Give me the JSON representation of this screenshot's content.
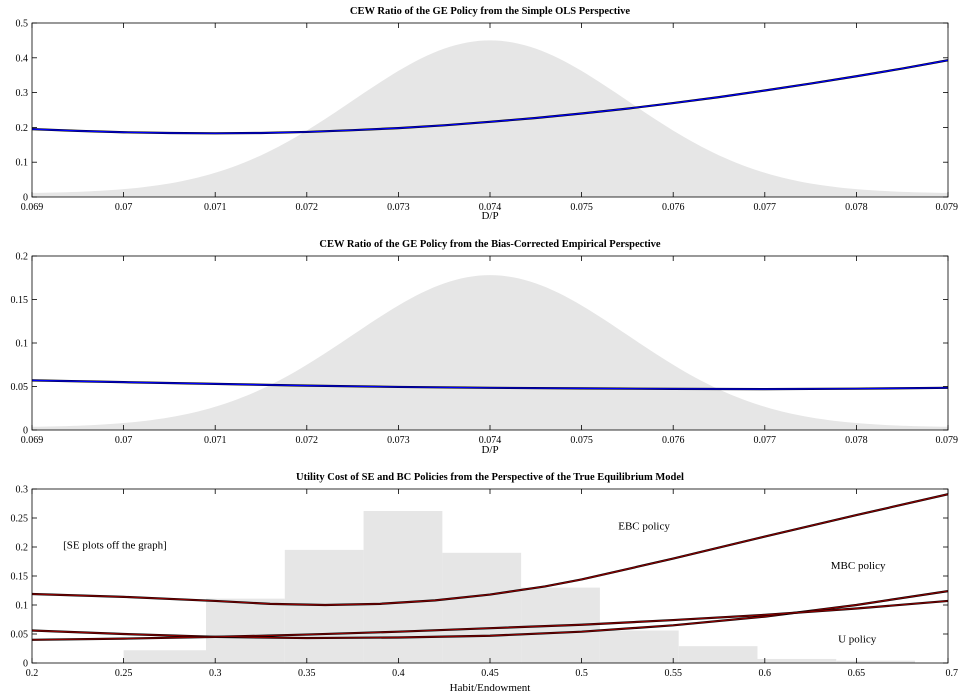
{
  "chart_data": [
    {
      "type": "line",
      "title": "CEW Ratio of the GE Policy from the Simple OLS Perspective",
      "xlabel": "D/P",
      "ylabel": "",
      "xlim": [
        0.069,
        0.079
      ],
      "ylim": [
        0,
        0.5
      ],
      "x_ticks": [
        "0.069",
        "0.07",
        "0.071",
        "0.072",
        "0.073",
        "0.074",
        "0.075",
        "0.076",
        "0.077",
        "0.078",
        "0.079"
      ],
      "y_ticks": [
        "0",
        "0.1",
        "0.2",
        "0.3",
        "0.4",
        "0.5"
      ],
      "background_density": {
        "type": "area",
        "color": "#e6e6e6",
        "mean": 0.074,
        "sd": 0.0015,
        "peak": 0.45,
        "tail": 0.01
      },
      "series": [
        {
          "color": "#0000ff",
          "x": [
            0.069,
            0.0695,
            0.07,
            0.0705,
            0.071,
            0.0715,
            0.072,
            0.0725,
            0.073,
            0.0735,
            0.074,
            0.0745,
            0.075,
            0.0755,
            0.076,
            0.0765,
            0.077,
            0.0775,
            0.078,
            0.0785,
            0.079
          ],
          "y": [
            0.195,
            0.19,
            0.186,
            0.184,
            0.183,
            0.184,
            0.187,
            0.192,
            0.198,
            0.206,
            0.216,
            0.227,
            0.24,
            0.254,
            0.27,
            0.287,
            0.306,
            0.326,
            0.347,
            0.369,
            0.393
          ]
        }
      ]
    },
    {
      "type": "line",
      "title": "CEW Ratio of the GE Policy from the Bias-Corrected Empirical Perspective",
      "xlabel": "D/P",
      "ylabel": "",
      "xlim": [
        0.069,
        0.079
      ],
      "ylim": [
        0,
        0.2
      ],
      "x_ticks": [
        "0.069",
        "0.07",
        "0.071",
        "0.072",
        "0.073",
        "0.074",
        "0.075",
        "0.076",
        "0.077",
        "0.078",
        "0.079"
      ],
      "y_ticks": [
        "0",
        "0.05",
        "0.1",
        "0.15",
        "0.2"
      ],
      "background_density": {
        "type": "area",
        "color": "#e6e6e6",
        "mean": 0.074,
        "sd": 0.0015,
        "peak": 0.178,
        "tail": 0.003
      },
      "series": [
        {
          "color": "#0000ff",
          "x": [
            0.069,
            0.07,
            0.071,
            0.072,
            0.073,
            0.074,
            0.075,
            0.076,
            0.077,
            0.078,
            0.079
          ],
          "y": [
            0.057,
            0.055,
            0.053,
            0.051,
            0.0495,
            0.0485,
            0.0478,
            0.0473,
            0.047,
            0.0475,
            0.0485
          ]
        }
      ]
    },
    {
      "type": "line",
      "title": "Utility Cost of SE and BC Policies from the Perspective of the True Equilibrium Model",
      "xlabel": "Habit/Endowment",
      "ylabel": "",
      "xlim": [
        0.2,
        0.7
      ],
      "ylim": [
        0,
        0.3
      ],
      "x_ticks": [
        "0.2",
        "0.25",
        "0.3",
        "0.35",
        "0.4",
        "0.45",
        "0.5",
        "0.55",
        "0.6",
        "0.65",
        "0.7"
      ],
      "y_ticks": [
        "0",
        "0.05",
        "0.1",
        "0.15",
        "0.2",
        "0.25",
        "0.3"
      ],
      "histogram": {
        "color": "#e6e6e6",
        "bins": [
          {
            "x0": 0.25,
            "x1": 0.295,
            "value": 0.022
          },
          {
            "x0": 0.295,
            "x1": 0.338,
            "value": 0.111
          },
          {
            "x0": 0.338,
            "x1": 0.381,
            "value": 0.195
          },
          {
            "x0": 0.381,
            "x1": 0.424,
            "value": 0.262
          },
          {
            "x0": 0.424,
            "x1": 0.467,
            "value": 0.19
          },
          {
            "x0": 0.467,
            "x1": 0.51,
            "value": 0.13
          },
          {
            "x0": 0.51,
            "x1": 0.553,
            "value": 0.056
          },
          {
            "x0": 0.553,
            "x1": 0.596,
            "value": 0.029
          },
          {
            "x0": 0.596,
            "x1": 0.639,
            "value": 0.007
          },
          {
            "x0": 0.639,
            "x1": 0.682,
            "value": 0.004
          }
        ]
      },
      "series": [
        {
          "color": "#8b0000",
          "label": "EBC policy",
          "x": [
            0.2,
            0.25,
            0.3,
            0.33,
            0.36,
            0.39,
            0.42,
            0.45,
            0.48,
            0.5,
            0.55,
            0.6,
            0.65,
            0.7
          ],
          "y": [
            0.119,
            0.114,
            0.107,
            0.102,
            0.1,
            0.102,
            0.108,
            0.118,
            0.132,
            0.144,
            0.18,
            0.218,
            0.255,
            0.291
          ]
        },
        {
          "color": "#8b0000",
          "label": "MBC policy",
          "x": [
            0.2,
            0.25,
            0.3,
            0.35,
            0.4,
            0.45,
            0.5,
            0.55,
            0.6,
            0.65,
            0.7
          ],
          "y": [
            0.056,
            0.05,
            0.045,
            0.043,
            0.044,
            0.047,
            0.054,
            0.065,
            0.08,
            0.1,
            0.124
          ]
        },
        {
          "color": "#8b0000",
          "label": "U policy",
          "x": [
            0.2,
            0.25,
            0.3,
            0.35,
            0.4,
            0.45,
            0.5,
            0.55,
            0.6,
            0.65,
            0.7
          ],
          "y": [
            0.04,
            0.042,
            0.045,
            0.049,
            0.054,
            0.06,
            0.066,
            0.074,
            0.083,
            0.094,
            0.107
          ]
        }
      ],
      "annotations": [
        {
          "text": "EBC policy",
          "x": 0.52,
          "y": 0.23
        },
        {
          "text": "MBC policy",
          "x": 0.636,
          "y": 0.162
        },
        {
          "text": "U policy",
          "x": 0.64,
          "y": 0.035
        },
        {
          "text": "[SE plots off the graph]",
          "x": 0.217,
          "y": 0.197
        }
      ]
    }
  ]
}
